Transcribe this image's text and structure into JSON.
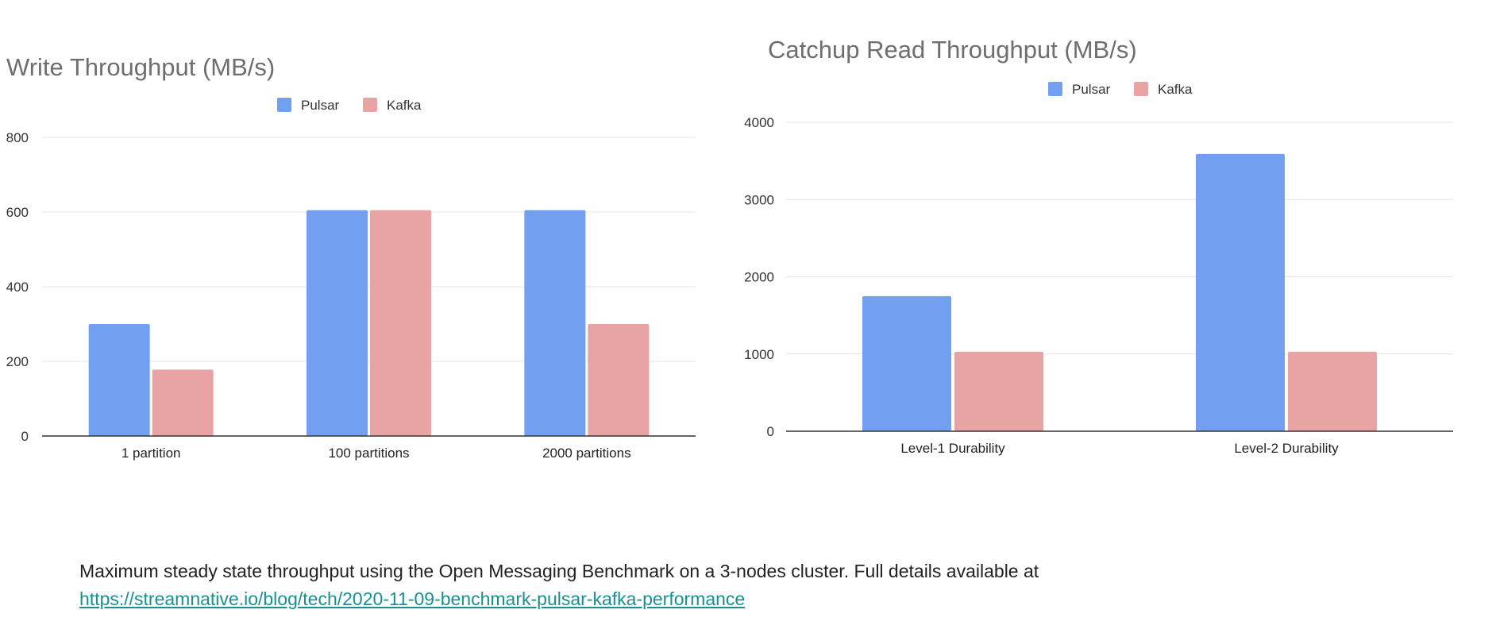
{
  "chart_data": [
    {
      "type": "bar",
      "title": "Write Throughput (MB/s)",
      "categories": [
        "1 partition",
        "100 partitions",
        "2000 partitions"
      ],
      "series": [
        {
          "name": "Pulsar",
          "values": [
            300,
            605,
            605
          ],
          "color": "#729fef"
        },
        {
          "name": "Kafka",
          "values": [
            178,
            605,
            300
          ],
          "color": "#e8a3a4"
        }
      ],
      "xlabel": "",
      "ylabel": "",
      "ylim": [
        0,
        800
      ],
      "yticks": [
        0,
        200,
        400,
        600,
        800
      ],
      "grid": true,
      "legend": "top-center"
    },
    {
      "type": "bar",
      "title": "Catchup Read Throughput (MB/s)",
      "categories": [
        "Level-1 Durability",
        "Level-2 Durability"
      ],
      "series": [
        {
          "name": "Pulsar",
          "values": [
            1750,
            3590
          ],
          "color": "#729fef"
        },
        {
          "name": "Kafka",
          "values": [
            1030,
            1030
          ],
          "color": "#e8a3a4"
        }
      ],
      "xlabel": "",
      "ylabel": "",
      "ylim": [
        0,
        4000
      ],
      "yticks": [
        0,
        1000,
        2000,
        3000,
        4000
      ],
      "grid": true,
      "legend": "top-center"
    }
  ],
  "caption": {
    "text": "Maximum steady state throughput using the Open Messaging Benchmark on a 3-nodes cluster. Full details available at",
    "link": "https://streamnative.io/blog/tech/2020-11-09-benchmark-pulsar-kafka-performance"
  }
}
